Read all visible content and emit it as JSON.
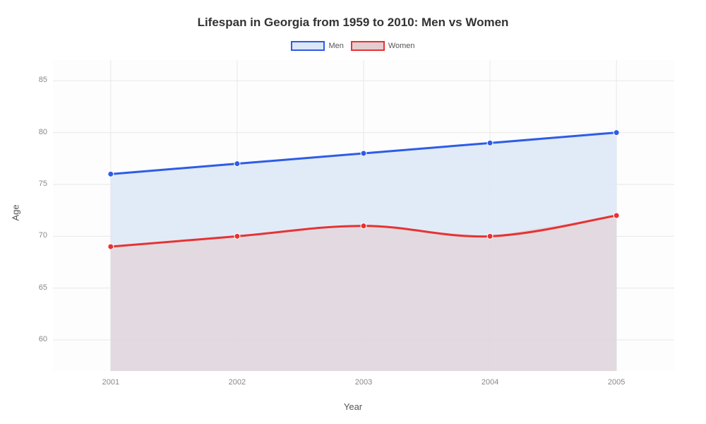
{
  "chart": {
    "type": "area",
    "title": "Lifespan in Georgia from 1959 to 2010: Men vs Women",
    "title_fontsize": 17,
    "title_color": "#333333",
    "xlabel": "Year",
    "ylabel": "Age",
    "label_fontsize": 13,
    "label_color": "#555555",
    "tick_fontsize": 11,
    "tick_color": "#888888",
    "background_color": "#ffffff",
    "plot_background_color": "#fdfdfd",
    "grid_color": "#e8e8e8",
    "grid_width": 1,
    "x_categories": [
      "2001",
      "2002",
      "2003",
      "2004",
      "2005"
    ],
    "ylim": [
      57,
      87
    ],
    "yticks": [
      60,
      65,
      70,
      75,
      80,
      85
    ],
    "series": [
      {
        "name": "Men",
        "values": [
          76,
          77,
          78,
          79,
          80
        ],
        "line_color": "#2e5ce6",
        "fill_color": "#dce7f7",
        "fill_opacity": 0.85,
        "line_width": 3,
        "marker_color": "#2e5ce6",
        "marker_size": 4
      },
      {
        "name": "Women",
        "values": [
          69,
          70,
          71,
          70,
          72
        ],
        "line_color": "#e63333",
        "fill_color": "#e4cdd1",
        "fill_opacity": 0.6,
        "line_width": 3,
        "marker_color": "#e63333",
        "marker_size": 4
      }
    ],
    "legend_position": "top-center",
    "plot_padding_ratio_x": 0.093
  }
}
